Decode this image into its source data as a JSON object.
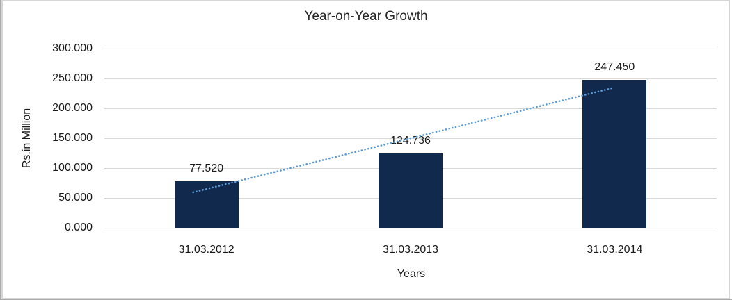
{
  "chart_data": {
    "type": "bar",
    "title": "Year-on-Year Growth",
    "categories": [
      "31.03.2012",
      "31.03.2013",
      "31.03.2014"
    ],
    "values": [
      77.52,
      124.736,
      247.45
    ],
    "data_labels": [
      "77.520",
      "124.736",
      "247.450"
    ],
    "xlabel": "Years",
    "ylabel": "Rs.in Million",
    "ylim": [
      0,
      300
    ],
    "ytick_step": 50,
    "ytick_labels": [
      "0.000",
      "50.000",
      "100.000",
      "150.000",
      "200.000",
      "250.000",
      "300.000"
    ],
    "grid": "horizontal",
    "legend": "none",
    "trendline": {
      "type": "linear",
      "style": "dotted"
    },
    "colors": {
      "bar": "#12294E",
      "trendline": "#5B9BD5",
      "gridline": "#D9D9D9",
      "frame_border": "#D6D6D6",
      "text": "#1A1A1A",
      "title_text": "#262626",
      "background": "#FFFFFF"
    }
  }
}
